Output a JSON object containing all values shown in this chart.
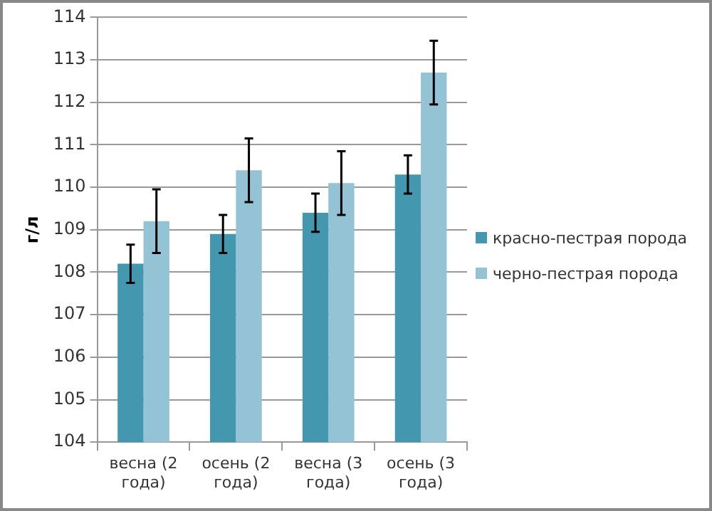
{
  "chart_data": {
    "type": "bar",
    "ylabel": "г/л",
    "categories": [
      "весна (2 года)",
      "осень (2 года)",
      "весна (3 года)",
      "осень (3 года)"
    ],
    "series": [
      {
        "name": "красно-пестрая порода",
        "color": "#4398b0",
        "values": [
          108.2,
          108.9,
          109.4,
          110.3
        ],
        "errors": [
          0.45,
          0.45,
          0.45,
          0.45
        ]
      },
      {
        "name": "черно-пестрая порода",
        "color": "#93c3d4",
        "values": [
          109.2,
          110.4,
          110.1,
          112.7
        ],
        "errors": [
          0.75,
          0.75,
          0.75,
          0.75
        ]
      }
    ],
    "ylim": [
      104,
      114
    ],
    "yticks": [
      104,
      105,
      106,
      107,
      108,
      109,
      110,
      111,
      112,
      113,
      114
    ],
    "grid": "y",
    "legend": "right"
  }
}
